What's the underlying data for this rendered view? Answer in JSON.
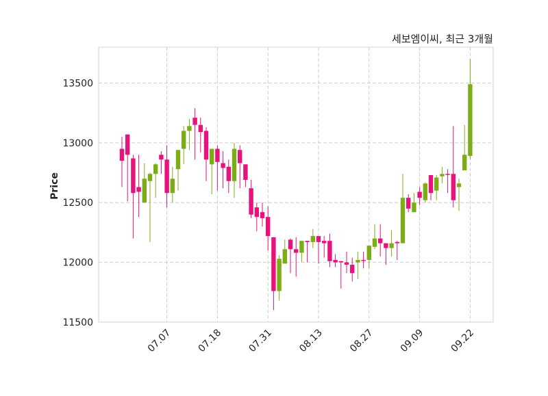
{
  "chart_data": {
    "type": "candlestick",
    "title": "세보엠이씨, 최근 3개월",
    "xlabel": "",
    "ylabel": "Price",
    "ylim": [
      11500,
      13800
    ],
    "yticks": [
      11500,
      12000,
      12500,
      13000,
      13500
    ],
    "xticks": [
      {
        "index": 8,
        "label": "07.07"
      },
      {
        "index": 17,
        "label": "07.18"
      },
      {
        "index": 26,
        "label": "07.31"
      },
      {
        "index": 35,
        "label": "08.13"
      },
      {
        "index": 44,
        "label": "08.27"
      },
      {
        "index": 53,
        "label": "09.09"
      },
      {
        "index": 62,
        "label": "09.22"
      }
    ],
    "grid": true,
    "colors": {
      "up": "#7cad17",
      "down": "#e8127c",
      "grid": "#cccccc",
      "frame": "#dddddd"
    },
    "ohlc": [
      [
        12950,
        13050,
        12630,
        12850
      ],
      [
        13070,
        13070,
        12510,
        12900
      ],
      [
        12870,
        12900,
        12200,
        12580
      ],
      [
        12630,
        12900,
        12380,
        12590
      ],
      [
        12500,
        12830,
        12500,
        12700
      ],
      [
        12680,
        12750,
        12170,
        12740
      ],
      [
        12740,
        12830,
        12540,
        12820
      ],
      [
        12900,
        12930,
        12740,
        12860
      ],
      [
        12860,
        12980,
        12460,
        12580
      ],
      [
        12580,
        12800,
        12500,
        12700
      ],
      [
        12780,
        12940,
        12600,
        12940
      ],
      [
        12950,
        13140,
        12820,
        13100
      ],
      [
        13100,
        13200,
        12940,
        13140
      ],
      [
        13210,
        13290,
        12860,
        13150
      ],
      [
        13150,
        13210,
        12920,
        13090
      ],
      [
        13100,
        13130,
        12680,
        12860
      ],
      [
        12820,
        12950,
        12570,
        12950
      ],
      [
        12950,
        12980,
        12600,
        12840
      ],
      [
        12830,
        12930,
        12620,
        12790
      ],
      [
        12800,
        12860,
        12580,
        12680
      ],
      [
        12680,
        13000,
        12540,
        12950
      ],
      [
        12940,
        12980,
        12620,
        12830
      ],
      [
        12820,
        12820,
        12630,
        12690
      ],
      [
        12620,
        12690,
        12370,
        12400
      ],
      [
        12460,
        12500,
        12260,
        12380
      ],
      [
        12420,
        12500,
        12300,
        12370
      ],
      [
        12380,
        12470,
        12100,
        12220
      ],
      [
        12210,
        12210,
        11600,
        11760
      ],
      [
        11760,
        12060,
        11680,
        12030
      ],
      [
        11990,
        12190,
        11990,
        12110
      ],
      [
        12190,
        12200,
        11910,
        12110
      ],
      [
        12110,
        12210,
        11880,
        12080
      ],
      [
        12080,
        12180,
        12000,
        12180
      ],
      [
        12180,
        12180,
        12000,
        12170
      ],
      [
        12170,
        12280,
        12120,
        12220
      ],
      [
        12220,
        12220,
        11990,
        12170
      ],
      [
        12180,
        12220,
        12040,
        12160
      ],
      [
        12180,
        12240,
        11960,
        12010
      ],
      [
        12020,
        12070,
        11960,
        12000
      ],
      [
        12010,
        12010,
        11780,
        12000
      ],
      [
        12000,
        12090,
        11910,
        11980
      ],
      [
        11980,
        12040,
        11840,
        11910
      ],
      [
        12000,
        12090,
        11860,
        12020
      ],
      [
        12020,
        12090,
        11950,
        12015
      ],
      [
        12020,
        12140,
        11950,
        12140
      ],
      [
        12130,
        12320,
        12110,
        12200
      ],
      [
        12200,
        12320,
        12050,
        12160
      ],
      [
        12160,
        12160,
        11980,
        12120
      ],
      [
        12120,
        12270,
        12050,
        12160
      ],
      [
        12170,
        12180,
        12020,
        12160
      ],
      [
        12160,
        12740,
        12160,
        12540
      ],
      [
        12540,
        12570,
        12420,
        12450
      ],
      [
        12420,
        12580,
        12420,
        12500
      ],
      [
        12590,
        12630,
        12480,
        12540
      ],
      [
        12520,
        12670,
        12500,
        12660
      ],
      [
        12730,
        12730,
        12520,
        12580
      ],
      [
        12600,
        12730,
        12520,
        12710
      ],
      [
        12720,
        12800,
        12660,
        12740
      ],
      [
        12740,
        12780,
        12580,
        12735
      ],
      [
        12740,
        13140,
        12460,
        12520
      ],
      [
        12630,
        12700,
        12430,
        12660
      ],
      [
        12770,
        13150,
        12770,
        12900
      ],
      [
        12890,
        13700,
        12860,
        13490
      ]
    ]
  }
}
